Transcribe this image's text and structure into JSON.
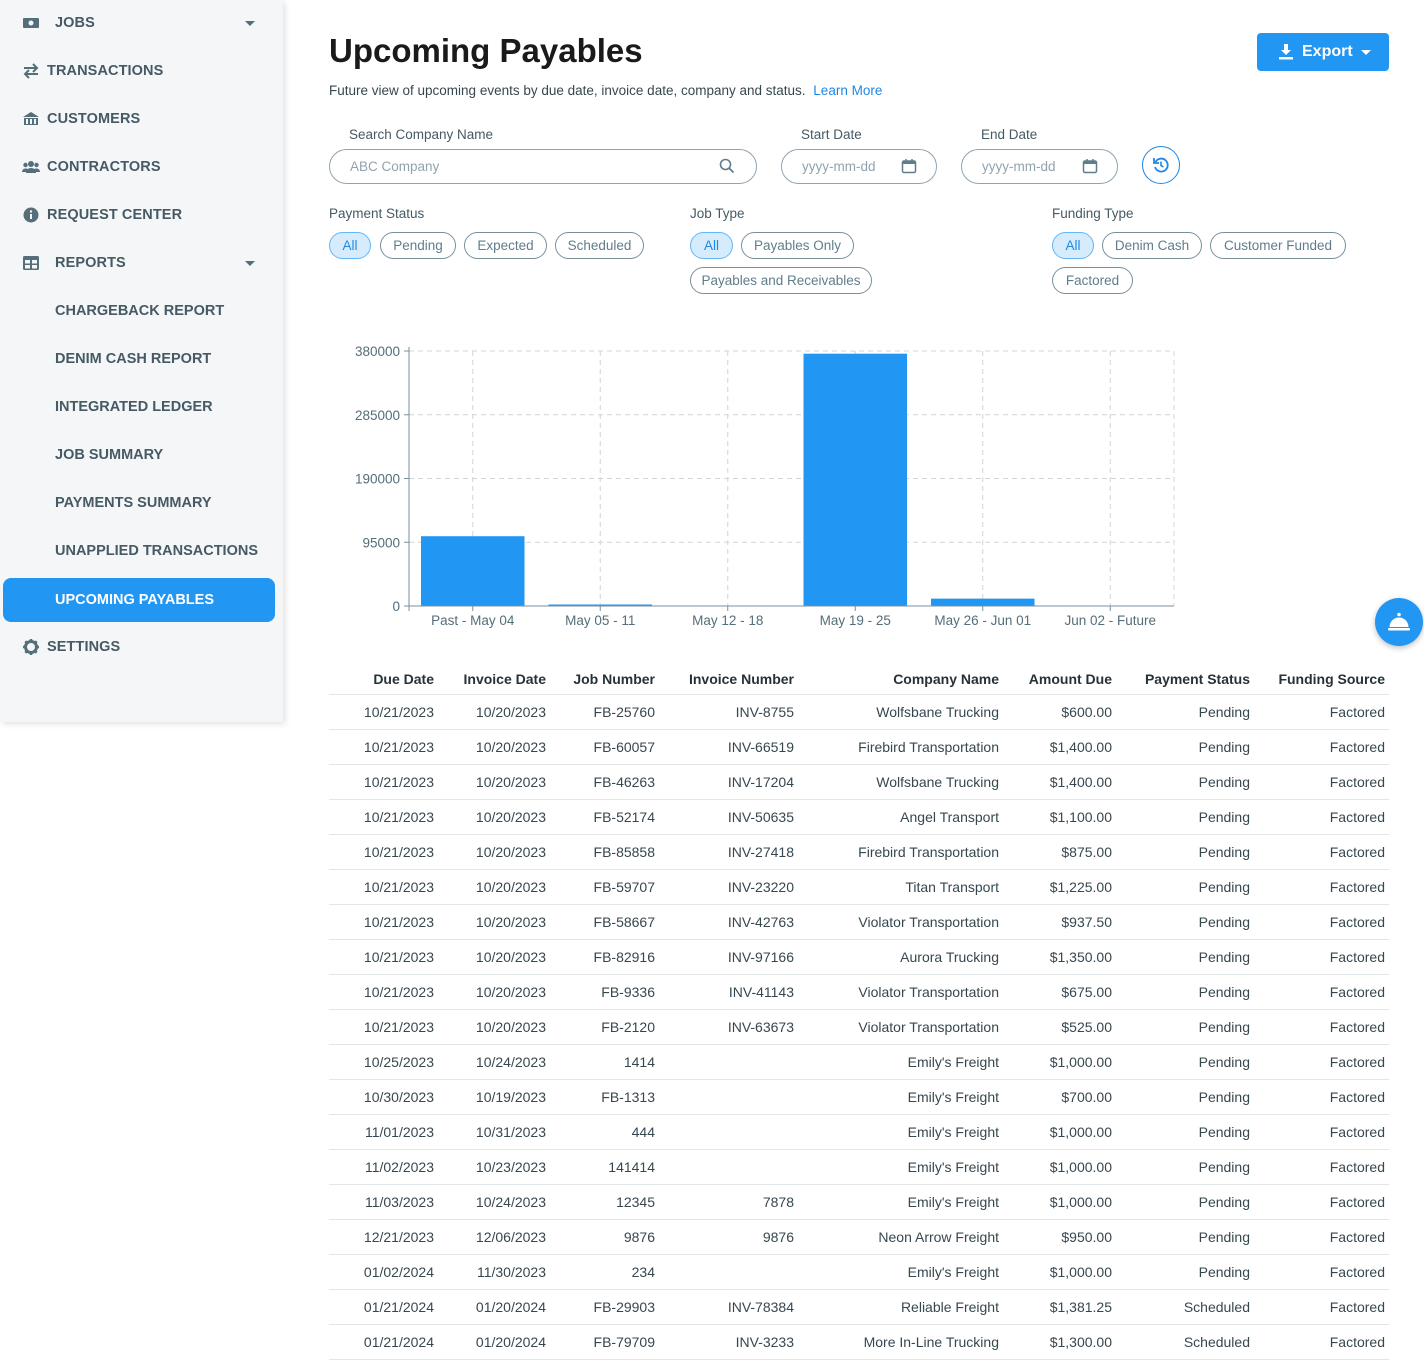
{
  "sidebar": {
    "items": [
      {
        "label": "JOBS",
        "icon": "money-icon"
      },
      {
        "label": "TRANSACTIONS",
        "icon": "swap-icon"
      },
      {
        "label": "CUSTOMERS",
        "icon": "bank-icon"
      },
      {
        "label": "CONTRACTORS",
        "icon": "people-icon"
      },
      {
        "label": "REQUEST CENTER",
        "icon": "info-icon"
      },
      {
        "label": "REPORTS",
        "icon": "table-icon"
      },
      {
        "label": "SETTINGS",
        "icon": "gear-icon"
      }
    ],
    "reports": [
      "CHARGEBACK REPORT",
      "DENIM CASH REPORT",
      "INTEGRATED LEDGER",
      "JOB SUMMARY",
      "PAYMENTS SUMMARY",
      "UNAPPLIED TRANSACTIONS",
      "UPCOMING PAYABLES"
    ],
    "active": "UPCOMING PAYABLES"
  },
  "header": {
    "title": "Upcoming Payables",
    "subtitle": "Future view of upcoming events by due date, invoice date, company and status.",
    "learn_more": "Learn More",
    "export_label": "Export"
  },
  "filters": {
    "search_label": "Search Company Name",
    "search_placeholder": "ABC Company",
    "start_label": "Start Date",
    "start_placeholder": "yyyy-mm-dd",
    "end_label": "End Date",
    "end_placeholder": "yyyy-mm-dd",
    "payment_status": {
      "label": "Payment Status",
      "options": [
        "All",
        "Pending",
        "Expected",
        "Scheduled"
      ],
      "selected": "All"
    },
    "job_type": {
      "label": "Job Type",
      "options": [
        "All",
        "Payables Only",
        "Payables and Receivables"
      ],
      "selected": "All"
    },
    "funding_type": {
      "label": "Funding Type",
      "options": [
        "All",
        "Denim Cash",
        "Customer Funded",
        "Factored"
      ],
      "selected": "All"
    }
  },
  "chart_data": {
    "type": "bar",
    "categories": [
      "Past - May 04",
      "May 05 - 11",
      "May 12 - 18",
      "May 19 - 25",
      "May 26 - Jun 01",
      "Jun 02 - Future"
    ],
    "values": [
      104000,
      1500,
      0,
      376000,
      11000,
      0
    ],
    "yticks": [
      "0",
      "95000",
      "190000",
      "285000",
      "380000"
    ],
    "ylim": [
      0,
      380000
    ],
    "grid": true,
    "bar_color": "#2196f3",
    "title": "",
    "xlabel": "",
    "ylabel": ""
  },
  "table": {
    "columns": [
      "Due Date",
      "Invoice Date",
      "Job Number",
      "Invoice Number",
      "Company Name",
      "Amount Due",
      "Payment Status",
      "Funding Source"
    ],
    "rows": [
      [
        "10/21/2023",
        "10/20/2023",
        "FB-25760",
        "INV-8755",
        "Wolfsbane Trucking",
        "$600.00",
        "Pending",
        "Factored"
      ],
      [
        "10/21/2023",
        "10/20/2023",
        "FB-60057",
        "INV-66519",
        "Firebird Transportation",
        "$1,400.00",
        "Pending",
        "Factored"
      ],
      [
        "10/21/2023",
        "10/20/2023",
        "FB-46263",
        "INV-17204",
        "Wolfsbane Trucking",
        "$1,400.00",
        "Pending",
        "Factored"
      ],
      [
        "10/21/2023",
        "10/20/2023",
        "FB-52174",
        "INV-50635",
        "Angel Transport",
        "$1,100.00",
        "Pending",
        "Factored"
      ],
      [
        "10/21/2023",
        "10/20/2023",
        "FB-85858",
        "INV-27418",
        "Firebird Transportation",
        "$875.00",
        "Pending",
        "Factored"
      ],
      [
        "10/21/2023",
        "10/20/2023",
        "FB-59707",
        "INV-23220",
        "Titan Transport",
        "$1,225.00",
        "Pending",
        "Factored"
      ],
      [
        "10/21/2023",
        "10/20/2023",
        "FB-58667",
        "INV-42763",
        "Violator Transportation",
        "$937.50",
        "Pending",
        "Factored"
      ],
      [
        "10/21/2023",
        "10/20/2023",
        "FB-82916",
        "INV-97166",
        "Aurora Trucking",
        "$1,350.00",
        "Pending",
        "Factored"
      ],
      [
        "10/21/2023",
        "10/20/2023",
        "FB-9336",
        "INV-41143",
        "Violator Transportation",
        "$675.00",
        "Pending",
        "Factored"
      ],
      [
        "10/21/2023",
        "10/20/2023",
        "FB-2120",
        "INV-63673",
        "Violator Transportation",
        "$525.00",
        "Pending",
        "Factored"
      ],
      [
        "10/25/2023",
        "10/24/2023",
        "1414",
        "",
        "Emily's Freight",
        "$1,000.00",
        "Pending",
        "Factored"
      ],
      [
        "10/30/2023",
        "10/19/2023",
        "FB-1313",
        "",
        "Emily's Freight",
        "$700.00",
        "Pending",
        "Factored"
      ],
      [
        "11/01/2023",
        "10/31/2023",
        "444",
        "",
        "Emily's Freight",
        "$1,000.00",
        "Pending",
        "Factored"
      ],
      [
        "11/02/2023",
        "10/23/2023",
        "141414",
        "",
        "Emily's Freight",
        "$1,000.00",
        "Pending",
        "Factored"
      ],
      [
        "11/03/2023",
        "10/24/2023",
        "12345",
        "7878",
        "Emily's Freight",
        "$1,000.00",
        "Pending",
        "Factored"
      ],
      [
        "12/21/2023",
        "12/06/2023",
        "9876",
        "9876",
        "Neon Arrow Freight",
        "$950.00",
        "Pending",
        "Factored"
      ],
      [
        "01/02/2024",
        "11/30/2023",
        "234",
        "",
        "Emily's Freight",
        "$1,000.00",
        "Pending",
        "Factored"
      ],
      [
        "01/21/2024",
        "01/20/2024",
        "FB-29903",
        "INV-78384",
        "Reliable Freight",
        "$1,381.25",
        "Scheduled",
        "Factored"
      ],
      [
        "01/21/2024",
        "01/20/2024",
        "FB-79709",
        "INV-3233",
        "More In-Line Trucking",
        "$1,300.00",
        "Scheduled",
        "Factored"
      ]
    ]
  },
  "fab": {
    "icon": "service-bell-icon"
  }
}
